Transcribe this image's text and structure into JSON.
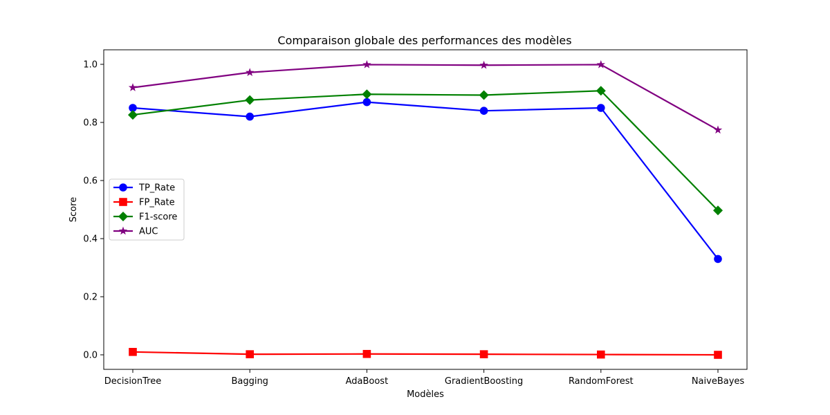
{
  "chart_data": {
    "type": "line",
    "title": "Comparaison globale des performances des modèles",
    "xlabel": "Modèles",
    "ylabel": "Score",
    "categories": [
      "DecisionTree",
      "Bagging",
      "AdaBoost",
      "GradientBoosting",
      "RandomForest",
      "NaiveBayes"
    ],
    "ylim": [
      -0.05,
      1.05
    ],
    "yticks": [
      "0.0",
      "0.2",
      "0.4",
      "0.6",
      "0.8",
      "1.0"
    ],
    "grid": false,
    "legend_position": "center-left",
    "series": [
      {
        "name": "TP_Rate",
        "color": "#0000ff",
        "marker": "circle",
        "values": [
          0.85,
          0.82,
          0.87,
          0.84,
          0.85,
          0.33
        ]
      },
      {
        "name": "FP_Rate",
        "color": "#ff0000",
        "marker": "square",
        "values": [
          0.01,
          0.002,
          0.003,
          0.002,
          0.001,
          0.0
        ]
      },
      {
        "name": "F1-score",
        "color": "#008000",
        "marker": "diamond",
        "values": [
          0.826,
          0.877,
          0.897,
          0.894,
          0.909,
          0.497
        ]
      },
      {
        "name": "AUC",
        "color": "#800080",
        "marker": "star",
        "values": [
          0.92,
          0.972,
          0.999,
          0.997,
          0.999,
          0.774
        ]
      }
    ]
  }
}
